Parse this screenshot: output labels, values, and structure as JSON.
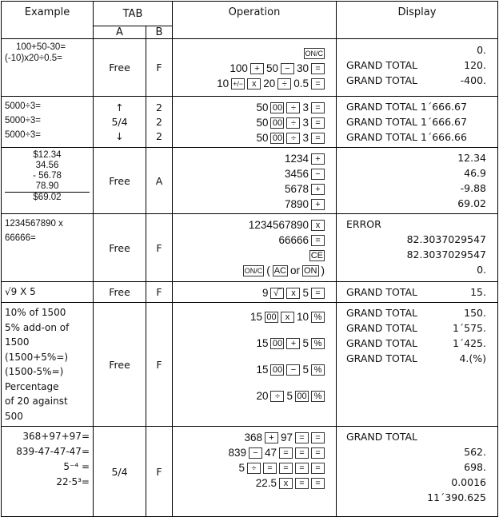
{
  "headers": {
    "example": "Example",
    "tab": "TAB",
    "operation": "Operation",
    "display": "Display",
    "a": "A",
    "b": "B"
  },
  "rows": [
    {
      "example": [
        "100+50-30=",
        "(-10)x20÷0.5="
      ],
      "a": "Free",
      "b": "F",
      "ops": [
        [
          {
            "k": "ON/C"
          }
        ],
        [
          {
            "t": "100"
          },
          {
            "k": "+"
          },
          {
            "t": "50"
          },
          {
            "k": "−"
          },
          {
            "t": "30"
          },
          {
            "k": "="
          }
        ],
        [
          {
            "t": "10"
          },
          {
            "k": "+/−"
          },
          {
            "k": "x"
          },
          {
            "t": "20"
          },
          {
            "k": "÷"
          },
          {
            "t": "0.5"
          },
          {
            "k": "="
          }
        ]
      ],
      "display": [
        {
          "l": "",
          "v": "0."
        },
        {
          "l": "GRAND TOTAL",
          "v": "120."
        },
        {
          "l": "GRAND TOTAL",
          "v": "-400."
        }
      ]
    },
    {
      "example": [
        "5000÷3=",
        "5000÷3=",
        "5000÷3="
      ],
      "a": "↑\n5/4\n↓",
      "b": "2\n2\n2",
      "ops": [
        [
          {
            "t": "50"
          },
          {
            "k": "00"
          },
          {
            "k": "÷"
          },
          {
            "t": "3"
          },
          {
            "k": "="
          }
        ],
        [
          {
            "t": "50"
          },
          {
            "k": "00"
          },
          {
            "k": "÷"
          },
          {
            "t": "3"
          },
          {
            "k": "="
          }
        ],
        [
          {
            "t": "50"
          },
          {
            "k": "00"
          },
          {
            "k": "÷"
          },
          {
            "t": "3"
          },
          {
            "k": "="
          }
        ]
      ],
      "display": [
        {
          "l": "GRAND TOTAL 1´666.67",
          "v": ""
        },
        {
          "l": "GRAND TOTAL 1´666.67",
          "v": ""
        },
        {
          "l": "GRAND TOTAL 1´666.66",
          "v": ""
        }
      ]
    },
    {
      "example": [
        "$12.34",
        "34.56",
        "- 56.78",
        "78.90",
        "$69.02"
      ],
      "a": "Free",
      "b": "A",
      "ops": [
        [
          {
            "t": "1234"
          },
          {
            "k": "+"
          }
        ],
        [
          {
            "t": "3456"
          },
          {
            "k": "−"
          }
        ],
        [
          {
            "t": "5678"
          },
          {
            "k": "+"
          }
        ],
        [
          {
            "t": "7890"
          },
          {
            "k": "+"
          }
        ]
      ],
      "display": [
        {
          "l": "",
          "v": "12.34"
        },
        {
          "l": "",
          "v": "46.9"
        },
        {
          "l": "",
          "v": "-9.88"
        },
        {
          "l": "",
          "v": "69.02"
        }
      ]
    },
    {
      "example": [
        "1234567890 x",
        "66666="
      ],
      "a": "Free",
      "b": "F",
      "ops": [
        [
          {
            "t": "1234567890"
          },
          {
            "k": "x"
          }
        ],
        [
          {
            "t": "66666"
          },
          {
            "k": "="
          }
        ],
        [
          {
            "k": "CE"
          }
        ],
        [
          {
            "k": "ON/C"
          },
          {
            "t": "("
          },
          {
            "k": "AC"
          },
          {
            "t": "or"
          },
          {
            "k": "ON"
          },
          {
            "t": ")"
          }
        ]
      ],
      "display": [
        {
          "l": "ERROR",
          "v": ""
        },
        {
          "l": "",
          "v": "82.3037029547"
        },
        {
          "l": "",
          "v": "82.3037029547"
        },
        {
          "l": "",
          "v": "0."
        }
      ]
    },
    {
      "example": [
        "√9  X 5"
      ],
      "a": "Free",
      "b": "F",
      "ops": [
        [
          {
            "t": "9"
          },
          {
            "k": "√‾"
          },
          {
            "k": "x"
          },
          {
            "t": "5"
          },
          {
            "k": "="
          }
        ]
      ],
      "display": [
        {
          "l": "GRAND TOTAL",
          "v": "15."
        }
      ]
    },
    {
      "example": [
        "10% of 1500",
        "5% add-on of",
        "1500",
        "(1500+5%=)",
        "(1500-5%=)",
        "Percentage",
        "of 20 against",
        "500"
      ],
      "a": "Free",
      "b": "F",
      "ops": [
        [
          {
            "t": "15"
          },
          {
            "k": "00"
          },
          {
            "k": "x"
          },
          {
            "t": "10"
          },
          {
            "k": "%"
          }
        ],
        [],
        [
          {
            "t": "15"
          },
          {
            "k": "00"
          },
          {
            "k": "+"
          },
          {
            "t": "5"
          },
          {
            "k": "%"
          }
        ],
        [],
        [
          {
            "t": "15"
          },
          {
            "k": "00"
          },
          {
            "k": "−"
          },
          {
            "t": "5"
          },
          {
            "k": "%"
          }
        ],
        [],
        [
          {
            "t": "20"
          },
          {
            "k": "÷"
          },
          {
            "t": "5"
          },
          {
            "k": "00"
          },
          {
            "k": "%"
          }
        ]
      ],
      "display": [
        {
          "l": "GRAND TOTAL",
          "v": "150."
        },
        {
          "l": "GRAND TOTAL",
          "v": "1´575."
        },
        {
          "l": "GRAND TOTAL",
          "v": "1´425."
        },
        {
          "l": "GRAND TOTAL",
          "v": "4.(%)"
        }
      ]
    },
    {
      "example": [
        "368+97+97=",
        "839-47-47-47=",
        "5⁻⁴ =",
        "22·5³="
      ],
      "a": "5/4",
      "b": "F",
      "ops": [
        [
          {
            "t": "368"
          },
          {
            "k": "+"
          },
          {
            "t": "97"
          },
          {
            "k": "="
          },
          {
            "k": "="
          }
        ],
        [
          {
            "t": "839"
          },
          {
            "k": "−"
          },
          {
            "t": "47"
          },
          {
            "k": "="
          },
          {
            "k": "="
          },
          {
            "k": "="
          }
        ],
        [
          {
            "t": "5"
          },
          {
            "k": "÷"
          },
          {
            "k": "="
          },
          {
            "k": "="
          },
          {
            "k": "="
          },
          {
            "k": "="
          }
        ],
        [
          {
            "t": "22.5"
          },
          {
            "k": "x"
          },
          {
            "k": "="
          },
          {
            "k": "="
          }
        ]
      ],
      "display": [
        {
          "l": "GRAND TOTAL",
          "v": ""
        },
        {
          "l": "",
          "v": "562."
        },
        {
          "l": "",
          "v": "698."
        },
        {
          "l": "",
          "v": "0.0016"
        },
        {
          "l": "",
          "v": "11´390.625"
        }
      ]
    }
  ]
}
